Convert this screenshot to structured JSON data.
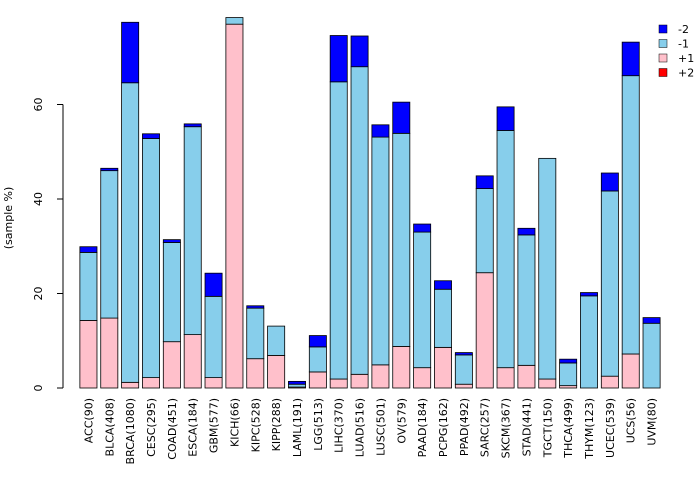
{
  "chart_data": {
    "type": "bar",
    "stacked": true,
    "title": "",
    "xlabel": "",
    "ylabel": "(sample %)",
    "ylim": [
      0,
      80
    ],
    "yticks": [
      0,
      20,
      40,
      60
    ],
    "legend_position": "top-right",
    "categories": [
      "ACC(90)",
      "BLCA(408)",
      "BRCA(1080)",
      "CESC(295)",
      "COAD(451)",
      "ESCA(184)",
      "GBM(577)",
      "KICH(66)",
      "KIPC(528)",
      "KIPP(288)",
      "LAML(191)",
      "LGG(513)",
      "LIHC(370)",
      "LUAD(516)",
      "LUSC(501)",
      "OV(579)",
      "PAAD(184)",
      "PCPG(162)",
      "PPAD(492)",
      "SARC(257)",
      "SKCM(367)",
      "STAD(441)",
      "TGCT(150)",
      "THCA(499)",
      "THYM(123)",
      "UCEC(539)",
      "UCS(56)",
      "UVM(80)"
    ],
    "series": [
      {
        "name": "+1",
        "color": "#ffc0cb",
        "values": [
          14.3,
          14.8,
          1.2,
          2.2,
          9.8,
          11.3,
          2.2,
          77.0,
          6.2,
          6.9,
          0.2,
          3.4,
          1.9,
          2.9,
          4.9,
          8.8,
          4.3,
          8.6,
          0.8,
          24.4,
          4.3,
          4.8,
          1.9,
          0.5,
          0.0,
          2.5,
          7.2,
          0.0
        ]
      },
      {
        "name": "-1",
        "color": "#87ceeb",
        "values": [
          14.4,
          31.2,
          63.4,
          50.6,
          21.0,
          44.0,
          17.2,
          1.4,
          10.7,
          6.2,
          0.6,
          5.3,
          62.9,
          65.1,
          48.2,
          45.1,
          28.7,
          12.3,
          6.2,
          17.8,
          50.2,
          27.6,
          46.7,
          4.8,
          19.5,
          39.2,
          58.9,
          13.7
        ]
      },
      {
        "name": "-2",
        "color": "#0000ff",
        "values": [
          1.2,
          0.5,
          12.8,
          1.0,
          0.6,
          0.6,
          4.9,
          0.0,
          0.5,
          0.0,
          0.6,
          2.4,
          9.8,
          6.5,
          2.6,
          6.6,
          1.7,
          1.8,
          0.5,
          2.7,
          5.0,
          1.4,
          0.0,
          0.8,
          0.7,
          3.8,
          7.1,
          1.2
        ]
      },
      {
        "name": "+2",
        "color": "#ff0000",
        "values": [
          0,
          0,
          0,
          0,
          0,
          0,
          0,
          0,
          0,
          0,
          0,
          0,
          0,
          0,
          0,
          0,
          0,
          0,
          0,
          0,
          0,
          0,
          0,
          0,
          0,
          0,
          0,
          0
        ]
      }
    ],
    "legend_order": [
      "-2",
      "-1",
      "+1",
      "+2"
    ]
  }
}
